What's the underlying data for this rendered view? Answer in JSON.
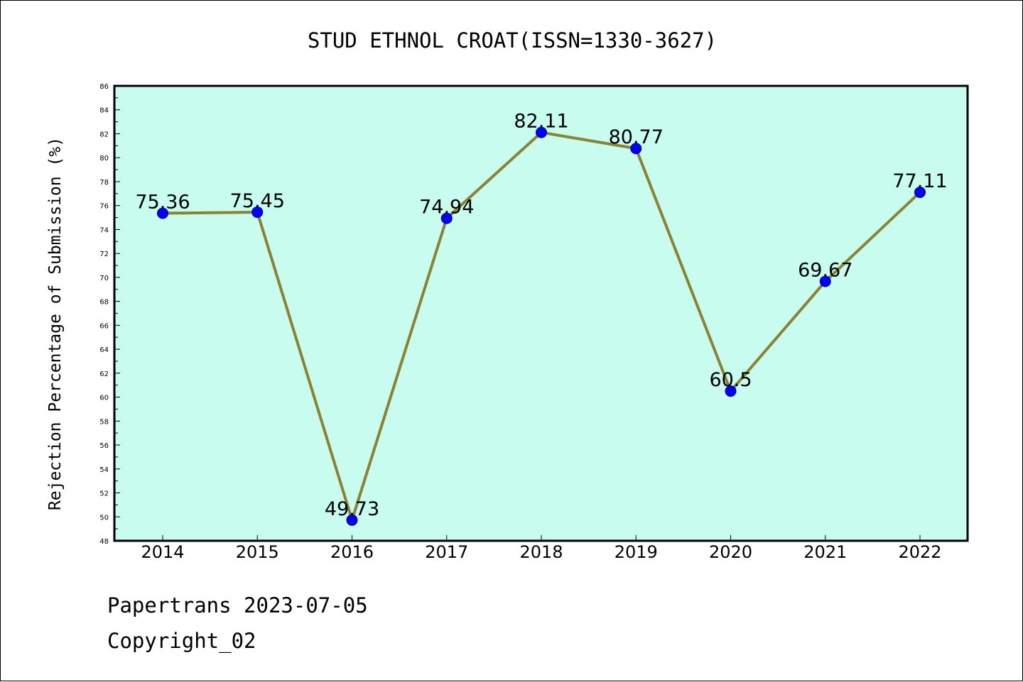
{
  "chart_data": {
    "type": "line",
    "title": "STUD ETHNOL CROAT(ISSN=1330-3627)",
    "xlabel": "",
    "ylabel": "Rejection Percentage of Submission (%)",
    "categories": [
      "2014",
      "2015",
      "2016",
      "2017",
      "2018",
      "2019",
      "2020",
      "2021",
      "2022"
    ],
    "values": [
      75.36,
      75.45,
      49.73,
      74.94,
      82.11,
      80.77,
      60.5,
      69.67,
      77.11
    ],
    "data_labels": [
      "75.36",
      "75.45",
      "49.73",
      "74.94",
      "82.11",
      "80.77",
      "60.5",
      "69.67",
      "77.11"
    ],
    "ylim": [
      48,
      86
    ],
    "yticks": [
      "48",
      "50",
      "52",
      "54",
      "56",
      "58",
      "60",
      "62",
      "64",
      "66",
      "68",
      "70",
      "72",
      "74",
      "76",
      "78",
      "80",
      "82",
      "84",
      "86"
    ],
    "grid": false,
    "legend": "none",
    "colors": {
      "plot_background": "#c8fcee",
      "line": "#8c8233",
      "marker": "#0000ff"
    }
  },
  "footer": {
    "line1": "Papertrans 2023-07-05",
    "line2": "Copyright_02"
  }
}
